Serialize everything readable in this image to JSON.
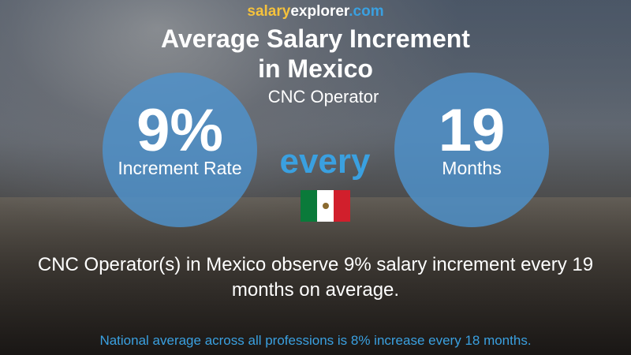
{
  "brand": [
    "salary",
    "explorer",
    ".com"
  ],
  "title": [
    "Average Salary Increment",
    "in Mexico"
  ],
  "subtitle": "CNC Operator",
  "left_circle": {
    "value": "9%",
    "label": "Increment Rate"
  },
  "connector": "every",
  "right_circle": {
    "value": "19",
    "label": "Months"
  },
  "description": "CNC Operator(s) in Mexico observe 9% salary increment every 19 months on average.",
  "footnote": "National average across all professions is 8% increase every 18 months."
}
